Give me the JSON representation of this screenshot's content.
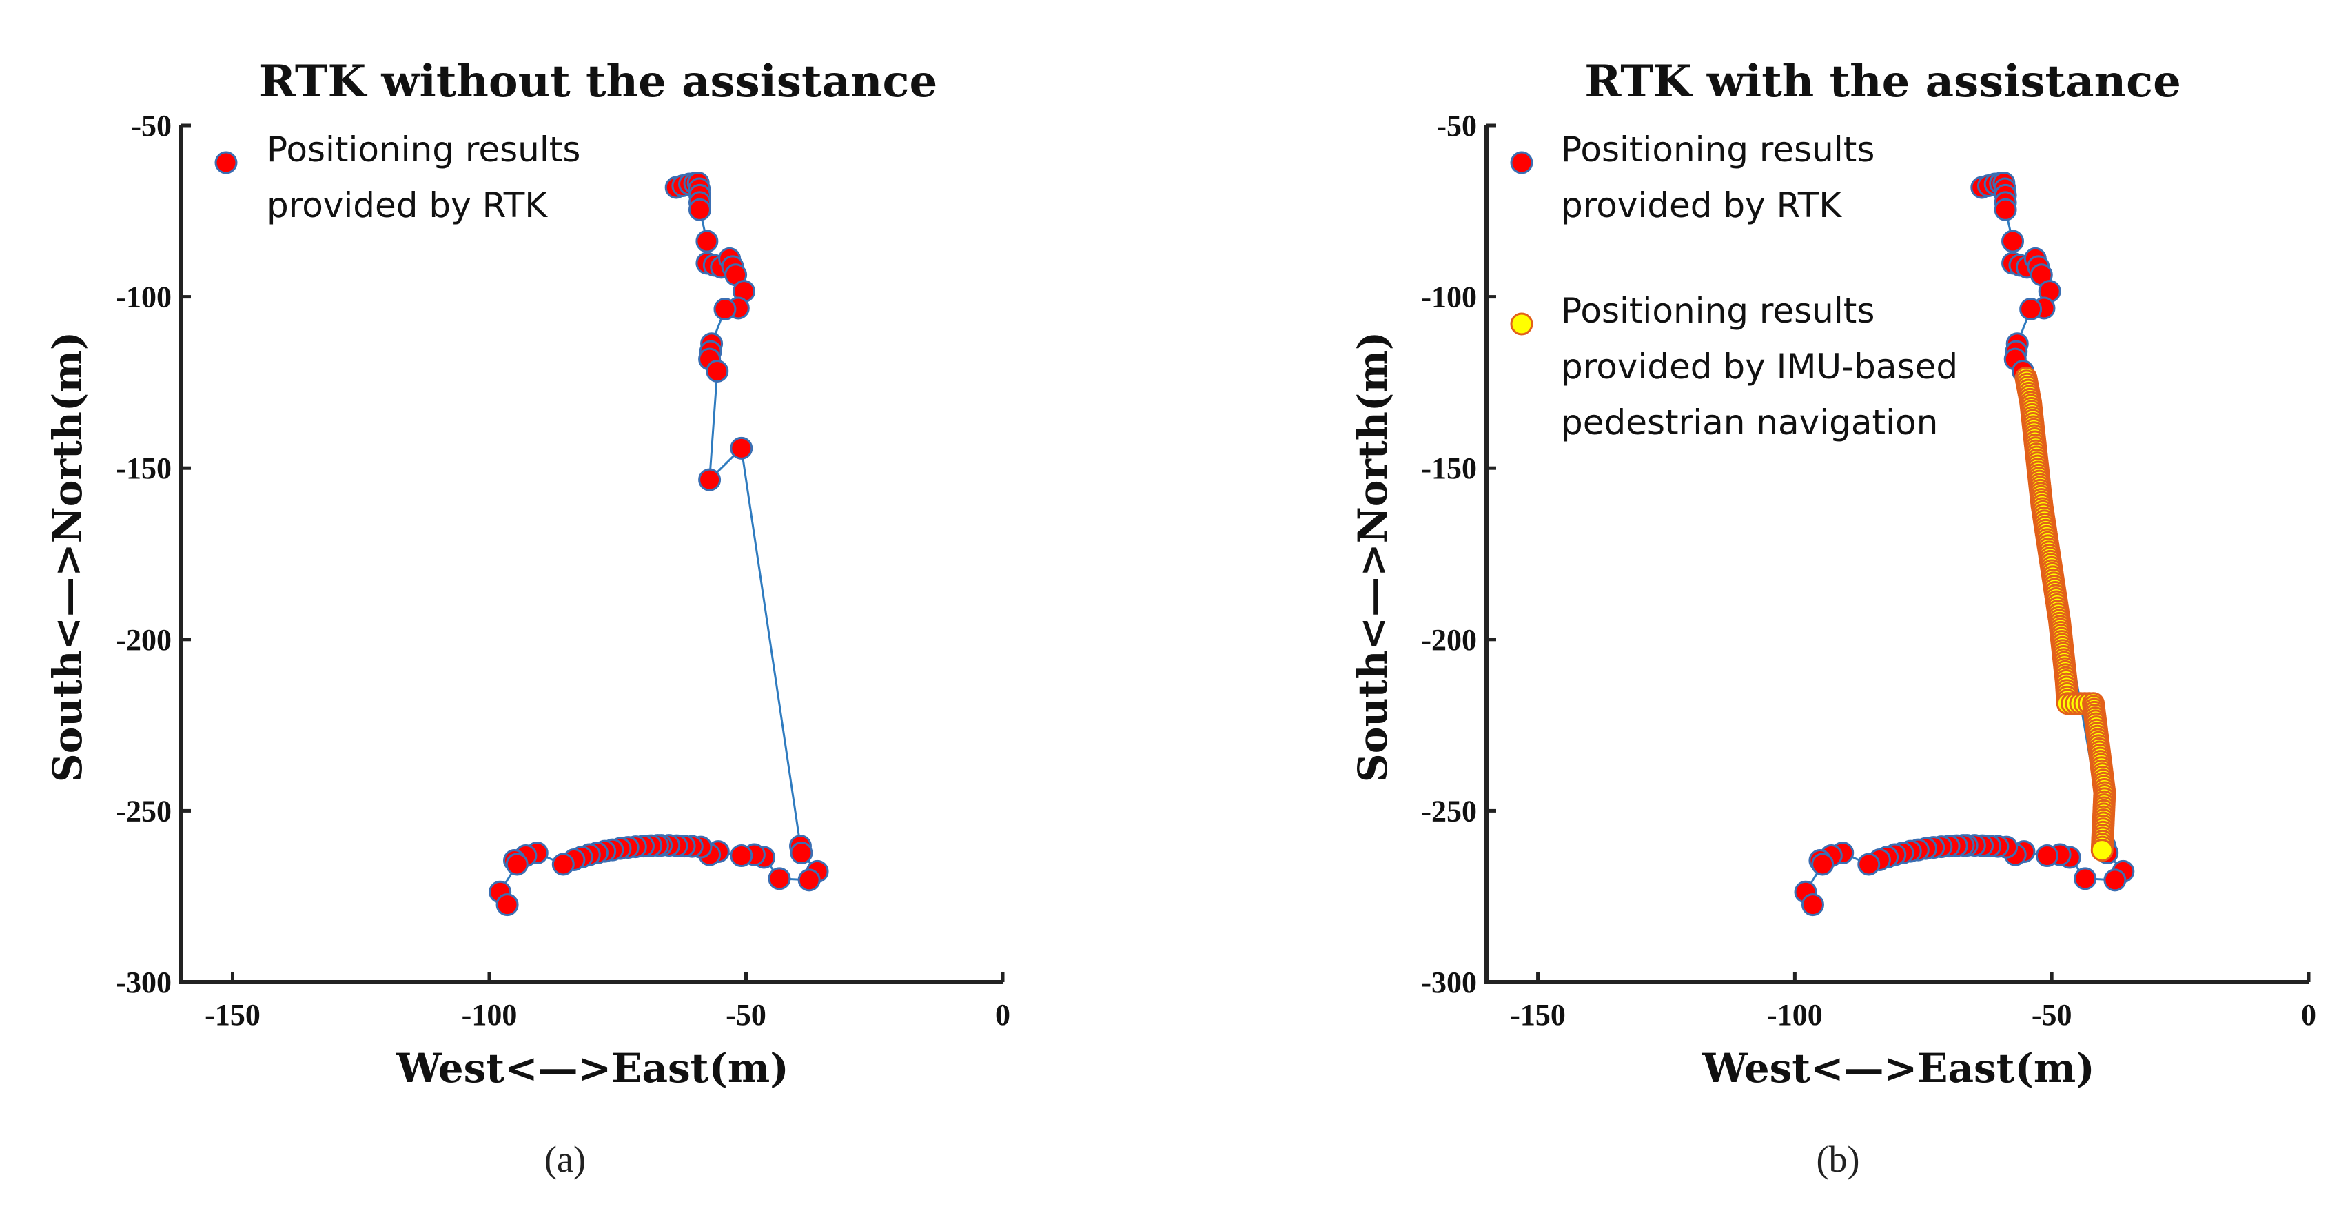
{
  "chart_data": [
    {
      "type": "scatter",
      "title": "RTK without the assistance",
      "xlabel": "West<—>East(m)",
      "ylabel": "South<—>North(m)",
      "caption": "(a)",
      "xlim": [
        -160,
        0
      ],
      "ylim": [
        -300,
        -50
      ],
      "xticks": [
        -150,
        -100,
        -50,
        0
      ],
      "yticks": [
        -50,
        -100,
        -150,
        -200,
        -250,
        -300
      ],
      "grid": false,
      "legend_position": "top-left",
      "series": [
        {
          "name": "Positioning results provided by RTK",
          "legend_lines": [
            "Positioning results",
            "provided by RTK"
          ],
          "marker_fill": "#ff0000",
          "marker_edge": "#3b6fb3",
          "line_color": "#2f7bbf",
          "points": [
            [
              -63.6,
              -68.1
            ],
            [
              -62.3,
              -67.6
            ],
            [
              -61.0,
              -67.1
            ],
            [
              -60.0,
              -66.9
            ],
            [
              -59.3,
              -66.8
            ],
            [
              -59.1,
              -68.5
            ],
            [
              -59.0,
              -70.4
            ],
            [
              -59.0,
              -72.5
            ],
            [
              -59.0,
              -74.6
            ],
            [
              -57.6,
              -83.8
            ],
            [
              -57.6,
              -90.2
            ],
            [
              -56.2,
              -90.8
            ],
            [
              -54.8,
              -91.4
            ],
            [
              -53.2,
              -88.9
            ],
            [
              -52.6,
              -91.2
            ],
            [
              -52.0,
              -93.6
            ],
            [
              -50.4,
              -98.4
            ],
            [
              -51.5,
              -103.3
            ],
            [
              -54.1,
              -103.6
            ],
            [
              -56.7,
              -113.7
            ],
            [
              -56.9,
              -116.0
            ],
            [
              -57.1,
              -118.2
            ],
            [
              -55.6,
              -121.7
            ],
            [
              -57.1,
              -153.4
            ],
            [
              -50.9,
              -144.2
            ],
            [
              -39.4,
              -260.3
            ],
            [
              -39.2,
              -262.3
            ],
            [
              -36.1,
              -267.7
            ],
            [
              -37.7,
              -270.2
            ],
            [
              -43.5,
              -269.8
            ],
            [
              -46.5,
              -263.6
            ],
            [
              -48.4,
              -262.8
            ],
            [
              -50.9,
              -263.1
            ],
            [
              -55.4,
              -261.9
            ],
            [
              -57.1,
              -262.8
            ],
            [
              -58.8,
              -260.6
            ],
            [
              -60.5,
              -260.4
            ],
            [
              -62.0,
              -260.3
            ],
            [
              -63.5,
              -260.2
            ],
            [
              -65.0,
              -260.1
            ],
            [
              -66.5,
              -260.1
            ],
            [
              -67.2,
              -260.1
            ],
            [
              -68.5,
              -260.2
            ],
            [
              -70.0,
              -260.3
            ],
            [
              -71.5,
              -260.5
            ],
            [
              -73.0,
              -260.7
            ],
            [
              -74.5,
              -261.0
            ],
            [
              -76.0,
              -261.4
            ],
            [
              -77.5,
              -261.8
            ],
            [
              -79.0,
              -262.3
            ],
            [
              -80.5,
              -262.8
            ],
            [
              -82.0,
              -263.5
            ],
            [
              -83.5,
              -264.3
            ],
            [
              -85.6,
              -265.6
            ],
            [
              -90.7,
              -262.3
            ],
            [
              -92.9,
              -263.1
            ],
            [
              -95.1,
              -264.5
            ],
            [
              -94.6,
              -265.6
            ],
            [
              -97.9,
              -273.7
            ],
            [
              -96.5,
              -277.4
            ]
          ]
        }
      ]
    },
    {
      "type": "scatter",
      "title": "RTK with the assistance",
      "xlabel": "West<—>East(m)",
      "ylabel": "South<—>North(m)",
      "caption": "(b)",
      "xlim": [
        -160,
        0
      ],
      "ylim": [
        -300,
        -50
      ],
      "xticks": [
        -150,
        -100,
        -50,
        0
      ],
      "yticks": [
        -50,
        -100,
        -150,
        -200,
        -250,
        -300
      ],
      "grid": false,
      "legend_position": "top-left",
      "series": [
        {
          "name": "Positioning results provided by RTK",
          "legend_lines": [
            "Positioning results",
            "provided by RTK"
          ],
          "marker_fill": "#ff0000",
          "marker_edge": "#3b6fb3",
          "line_color": "#2f7bbf",
          "points": [
            [
              -63.6,
              -68.1
            ],
            [
              -62.3,
              -67.6
            ],
            [
              -61.0,
              -67.1
            ],
            [
              -60.0,
              -66.9
            ],
            [
              -59.3,
              -66.8
            ],
            [
              -59.1,
              -68.5
            ],
            [
              -59.0,
              -70.4
            ],
            [
              -59.0,
              -72.5
            ],
            [
              -59.0,
              -74.6
            ],
            [
              -57.6,
              -83.8
            ],
            [
              -57.6,
              -90.2
            ],
            [
              -56.2,
              -90.8
            ],
            [
              -54.8,
              -91.4
            ],
            [
              -53.2,
              -88.9
            ],
            [
              -52.6,
              -91.2
            ],
            [
              -52.0,
              -93.6
            ],
            [
              -50.4,
              -98.4
            ],
            [
              -51.5,
              -103.3
            ],
            [
              -54.1,
              -103.6
            ],
            [
              -56.7,
              -113.7
            ],
            [
              -56.9,
              -116.0
            ],
            [
              -57.1,
              -118.2
            ],
            [
              -55.6,
              -121.7
            ],
            [
              -39.6,
              -260.3
            ],
            [
              -39.2,
              -262.3
            ],
            [
              -36.1,
              -267.7
            ],
            [
              -37.7,
              -270.2
            ],
            [
              -43.5,
              -269.8
            ],
            [
              -46.5,
              -263.6
            ],
            [
              -48.4,
              -262.8
            ],
            [
              -50.9,
              -263.1
            ],
            [
              -55.4,
              -261.9
            ],
            [
              -57.1,
              -262.8
            ],
            [
              -58.8,
              -260.6
            ],
            [
              -60.5,
              -260.4
            ],
            [
              -62.0,
              -260.3
            ],
            [
              -63.5,
              -260.2
            ],
            [
              -65.0,
              -260.1
            ],
            [
              -66.5,
              -260.1
            ],
            [
              -67.2,
              -260.1
            ],
            [
              -68.5,
              -260.2
            ],
            [
              -70.0,
              -260.3
            ],
            [
              -71.5,
              -260.5
            ],
            [
              -73.0,
              -260.7
            ],
            [
              -74.5,
              -261.0
            ],
            [
              -76.0,
              -261.4
            ],
            [
              -77.5,
              -261.8
            ],
            [
              -79.0,
              -262.3
            ],
            [
              -80.5,
              -262.8
            ],
            [
              -82.0,
              -263.5
            ],
            [
              -83.5,
              -264.3
            ],
            [
              -85.6,
              -265.6
            ],
            [
              -90.7,
              -262.3
            ],
            [
              -92.9,
              -263.1
            ],
            [
              -95.1,
              -264.5
            ],
            [
              -94.6,
              -265.6
            ],
            [
              -97.9,
              -273.7
            ],
            [
              -96.5,
              -277.4
            ]
          ]
        },
        {
          "name": "Positioning results provided by IMU-based pedestrian navigation",
          "legend_lines": [
            "Positioning results",
            "provided by IMU-based",
            "pedestrian navigation"
          ],
          "marker_fill": "#ffff00",
          "marker_edge": "#e2601a",
          "waypoints": [
            [
              -55.0,
              -123.7
            ],
            [
              -54.1,
              -130.8
            ],
            [
              -51.9,
              -160.9
            ],
            [
              -48.5,
              -194.4
            ],
            [
              -47.2,
              -212.0
            ],
            [
              -46.9,
              -218.7
            ],
            [
              -41.9,
              -218.7
            ],
            [
              -41.4,
              -224.6
            ],
            [
              -39.7,
              -244.7
            ],
            [
              -40.2,
              -261.5
            ]
          ],
          "step_m": 0.9
        }
      ]
    }
  ]
}
